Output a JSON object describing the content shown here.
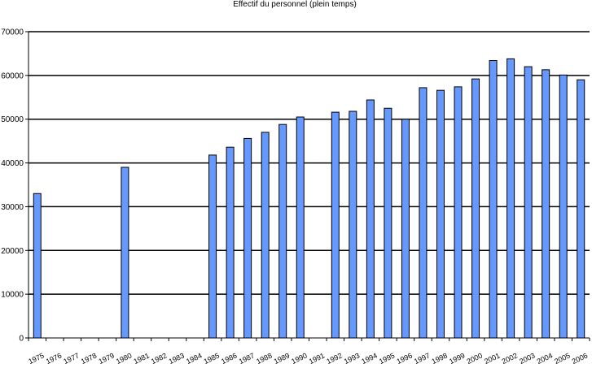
{
  "chart_data": {
    "type": "bar",
    "title": "Effectif du personnel (plein temps)",
    "xlabel": "",
    "ylabel": "",
    "ylim": [
      0,
      70000
    ],
    "yticks": [
      0,
      10000,
      20000,
      30000,
      40000,
      50000,
      60000,
      70000
    ],
    "ytick_labels": [
      "0",
      "10000",
      "20000",
      "30000",
      "40000",
      "50000",
      "60000",
      "70000"
    ],
    "grid": "horizontal",
    "bar_color": "#6699ff",
    "categories": [
      "1975",
      "1976",
      "1977",
      "1978",
      "1979",
      "1980",
      "1981",
      "1982",
      "1983",
      "1984",
      "1985",
      "1986",
      "1987",
      "1988",
      "1989",
      "1990",
      "1991",
      "1992",
      "1993",
      "1994",
      "1995",
      "1996",
      "1997",
      "1998",
      "1999",
      "2000",
      "2001",
      "2002",
      "2003",
      "2004",
      "2005",
      "2006"
    ],
    "values": [
      33000,
      null,
      null,
      null,
      null,
      39000,
      null,
      null,
      null,
      null,
      41800,
      43600,
      45600,
      47000,
      48800,
      50500,
      null,
      51600,
      51800,
      54400,
      52500,
      50000,
      57200,
      56600,
      57400,
      59200,
      63400,
      63800,
      62000,
      61300,
      60100,
      59000
    ]
  }
}
